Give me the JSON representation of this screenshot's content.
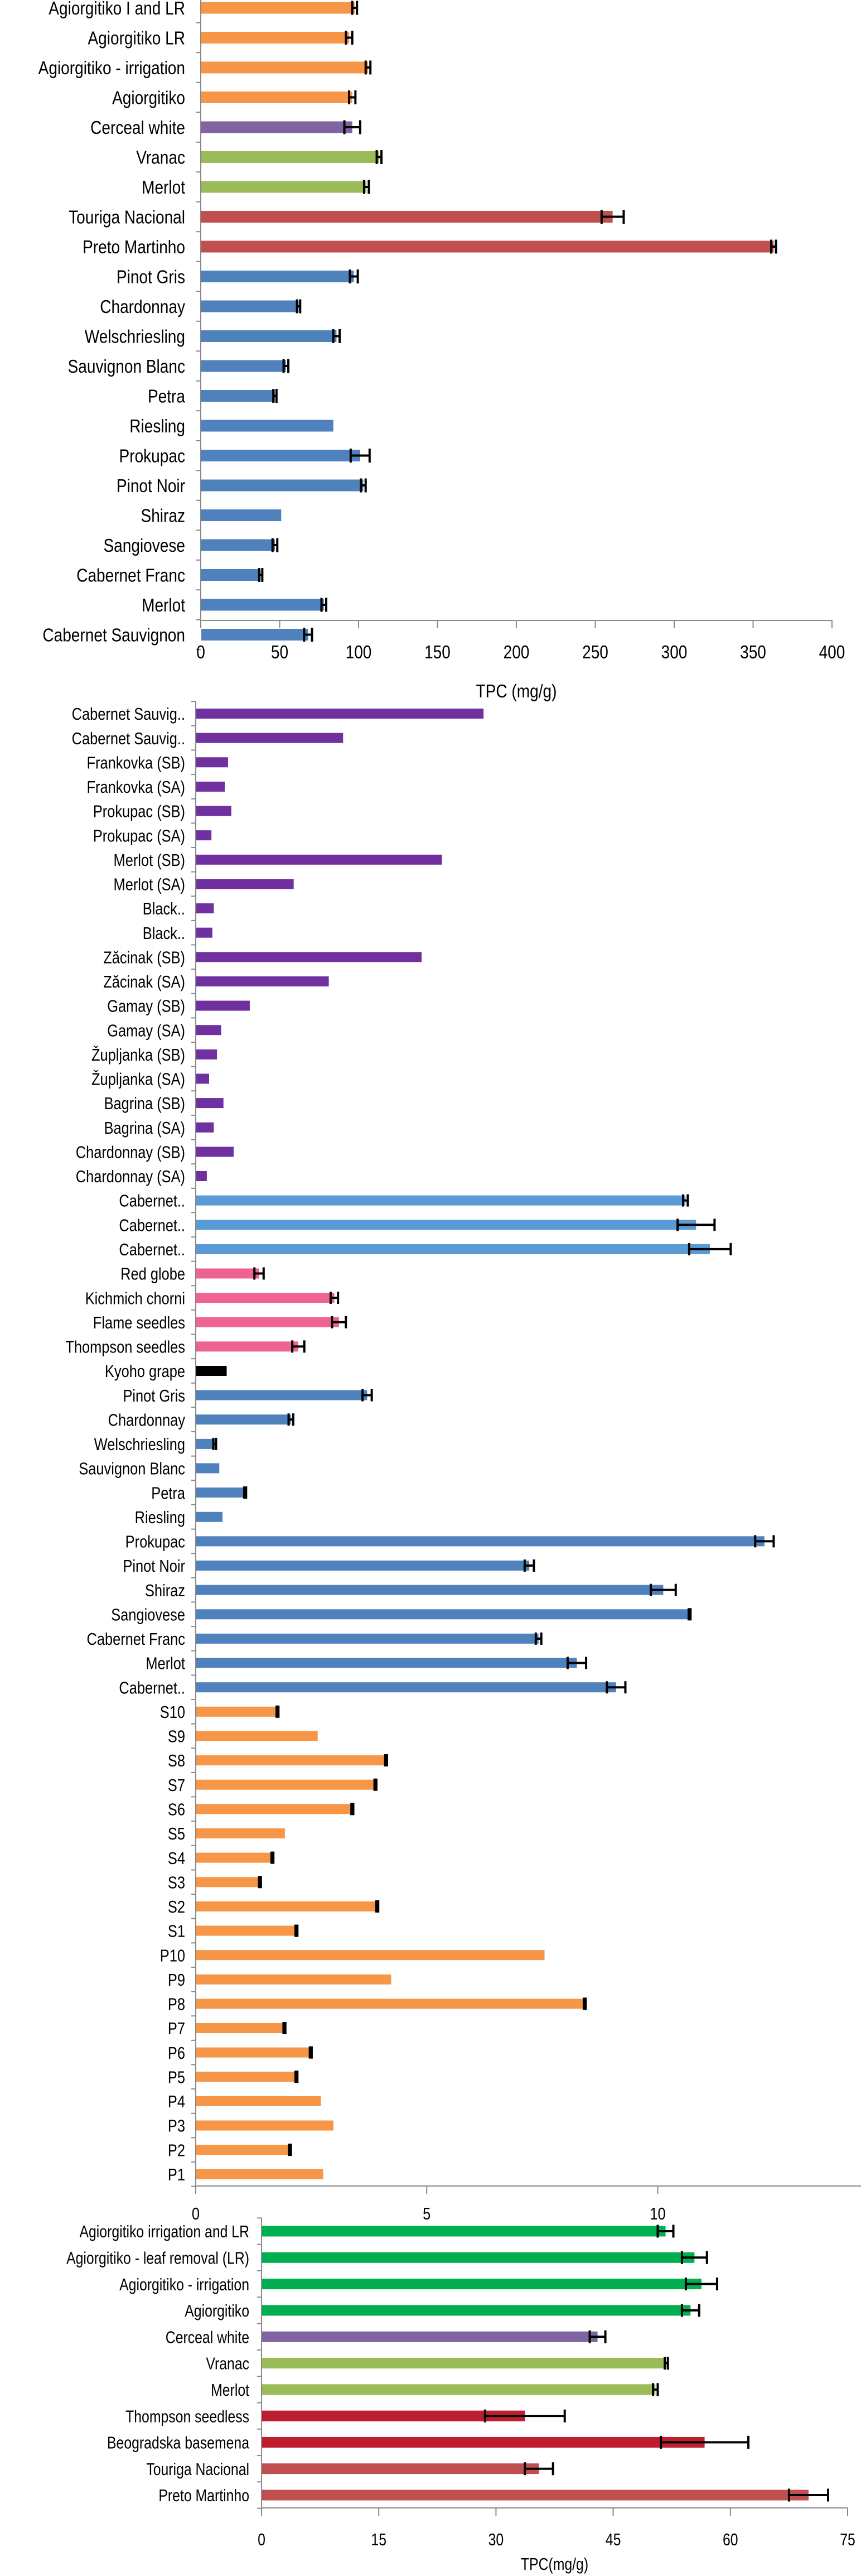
{
  "chart_data": [
    {
      "type": "bar",
      "orientation": "horizontal",
      "xlabel": "TPC (mg/g)",
      "xlim": [
        0,
        400
      ],
      "ticks": [
        "0",
        "50",
        "100",
        "150",
        "200",
        "250",
        "300",
        "350",
        "400"
      ],
      "tick_values": [
        0,
        50,
        100,
        150,
        200,
        250,
        300,
        350,
        400
      ],
      "category_order": "top-to-bottom",
      "categories": [
        "Agiorgitiko I and LR",
        "Agiorgitiko LR",
        "Agiorgitiko - irrigation",
        "Agiorgitiko",
        "Cerceal white",
        "Vranac",
        "Merlot",
        "Touriga Nacional",
        "Preto Martinho",
        "Pinot Gris",
        "Chardonnay",
        "Welschriesling",
        "Sauvignon Blanc",
        "Petra",
        "Riesling",
        "Prokupac",
        "Pinot Noir",
        "Shiraz",
        "Sangiovese",
        "Cabernet Franc",
        "Merlot",
        "Cabernet Sauvignon"
      ],
      "values": [
        97.5,
        94,
        106,
        96,
        96,
        113,
        105,
        261,
        363,
        97,
        62,
        86,
        54,
        47,
        84,
        101,
        103,
        51,
        47,
        38,
        78,
        68
      ],
      "errors": [
        1.5,
        2,
        1.5,
        2,
        5,
        1.5,
        1.5,
        7,
        1.5,
        2.5,
        1,
        2,
        1.5,
        1,
        0,
        6,
        1.5,
        0,
        1.5,
        1,
        1.5,
        2.5
      ],
      "groups": [
        {
          "color": "#F79646",
          "count": 4
        },
        {
          "color": "#8064A2",
          "count": 1
        },
        {
          "color": "#9BBB59",
          "count": 2
        },
        {
          "color": "#C0504D",
          "count": 2
        },
        {
          "color": "#4F81BD",
          "count": 13
        }
      ]
    },
    {
      "type": "bar",
      "orientation": "horizontal",
      "xlabel": "",
      "xlim": [
        0,
        14.4
      ],
      "ticks": [
        "0",
        "5",
        "10"
      ],
      "tick_values": [
        0,
        5,
        10
      ],
      "category_order": "top-to-bottom",
      "categories": [
        "Cabernet Sauvig..",
        "Cabernet Sauvig..",
        "Frankovka (SB)",
        "Frankovka (SA)",
        "Prokupac (SB)",
        "Prokupac (SA)",
        "Merlot (SB)",
        "Merlot (SA)",
        "Black..",
        "Black..",
        "Zăcinak (SB)",
        "Zăcinak (SA)",
        "Gamay (SB)",
        "Gamay (SA)",
        "Župljanka (SB)",
        "Župljanka (SA)",
        "Bagrina (SB)",
        "Bagrina (SA)",
        "Chardonnay (SB)",
        "Chardonnay (SA)",
        "Cabernet..",
        "Cabernet..",
        "Cabernet..",
        "Red globe",
        "Kichmich chorni",
        "Flame seedles",
        "Thompson seedles",
        "Kyoho grape",
        "Pinot Gris",
        "Chardonnay",
        "Welschriesling",
        "Sauvignon Blanc",
        "Petra",
        "Riesling",
        "Prokupac",
        "Pinot Noir",
        "Shiraz",
        "Sangiovese",
        "Cabernet Franc",
        "Merlot",
        "Cabernet..",
        "S10",
        "S9",
        "S8",
        "S7",
        "S6",
        "S5",
        "S4",
        "S3",
        "S2",
        "S1",
        "P10",
        "P9",
        "P8",
        "P7",
        "P6",
        "P5",
        "P4",
        "P3",
        "P2",
        "P1"
      ],
      "values": [
        6.23,
        3.19,
        0.7,
        0.63,
        0.77,
        0.34,
        5.33,
        2.12,
        0.39,
        0.36,
        4.89,
        2.88,
        1.17,
        0.55,
        0.46,
        0.29,
        0.6,
        0.39,
        0.82,
        0.24,
        10.6,
        10.83,
        11.13,
        1.37,
        3.0,
        3.1,
        2.22,
        0.67,
        3.71,
        2.06,
        0.41,
        0.51,
        1.07,
        0.58,
        12.31,
        7.22,
        10.12,
        10.69,
        7.42,
        8.25,
        9.1,
        1.77,
        2.64,
        4.12,
        3.89,
        3.39,
        1.93,
        1.66,
        1.39,
        3.93,
        2.18,
        7.55,
        4.23,
        8.42,
        1.92,
        2.49,
        2.18,
        2.71,
        2.98,
        2.04,
        2.76
      ],
      "errors": [
        0,
        0,
        0,
        0,
        0,
        0,
        0,
        0,
        0,
        0,
        0,
        0,
        0,
        0,
        0,
        0,
        0,
        0,
        0,
        0,
        0.05,
        0.4,
        0.45,
        0.1,
        0.08,
        0.15,
        0.13,
        0,
        0.1,
        0.05,
        0.03,
        0,
        0.02,
        0,
        0.2,
        0.1,
        0.27,
        0.02,
        0.06,
        0.2,
        0.2,
        0.02,
        0,
        0.02,
        0.02,
        0.02,
        0,
        0.02,
        0.02,
        0.02,
        0.02,
        0,
        0,
        0.02,
        0.02,
        0.02,
        0.02,
        0,
        0,
        0.02,
        0
      ],
      "groups": [
        {
          "color": "#7030A0",
          "count": 20
        },
        {
          "color": "#5B9BD5",
          "count": 3
        },
        {
          "color": "#EE6394",
          "count": 4
        },
        {
          "color": "#000000",
          "count": 1
        },
        {
          "color": "#4F81BD",
          "count": 13
        },
        {
          "color": "#F79646",
          "count": 20
        }
      ]
    },
    {
      "type": "bar",
      "orientation": "horizontal",
      "xlabel": "TPC(mg/g)",
      "xlim": [
        0,
        75
      ],
      "ticks": [
        "0",
        "15",
        "30",
        "45",
        "60",
        "75"
      ],
      "tick_values": [
        0,
        15,
        30,
        45,
        60,
        75
      ],
      "category_order": "top-to-bottom",
      "categories": [
        "Agiorgitiko irrigation and LR",
        "Agiorgitiko - leaf removal (LR)",
        "Agiorgitiko - irrigation",
        "Agiorgitiko",
        "Cerceal white",
        "Vranac",
        "Merlot",
        "Thompson seedless",
        "Beogradska basemena",
        "Touriga Nacional",
        "Preto Martinho"
      ],
      "values": [
        51.7,
        55.4,
        56.3,
        54.9,
        43,
        51.8,
        50.4,
        33.7,
        56.7,
        35.5,
        70
      ],
      "errors": [
        1,
        1.6,
        2,
        1.1,
        1,
        0.2,
        0.3,
        5.1,
        5.6,
        1.8,
        2.5
      ],
      "groups": [
        {
          "color": "#00B050",
          "count": 4
        },
        {
          "color": "#8064A2",
          "count": 1
        },
        {
          "color": "#9BBB59",
          "count": 2
        },
        {
          "color": "#BE1E2D",
          "count": 2
        },
        {
          "color": "#C0504D",
          "count": 2
        }
      ]
    }
  ]
}
